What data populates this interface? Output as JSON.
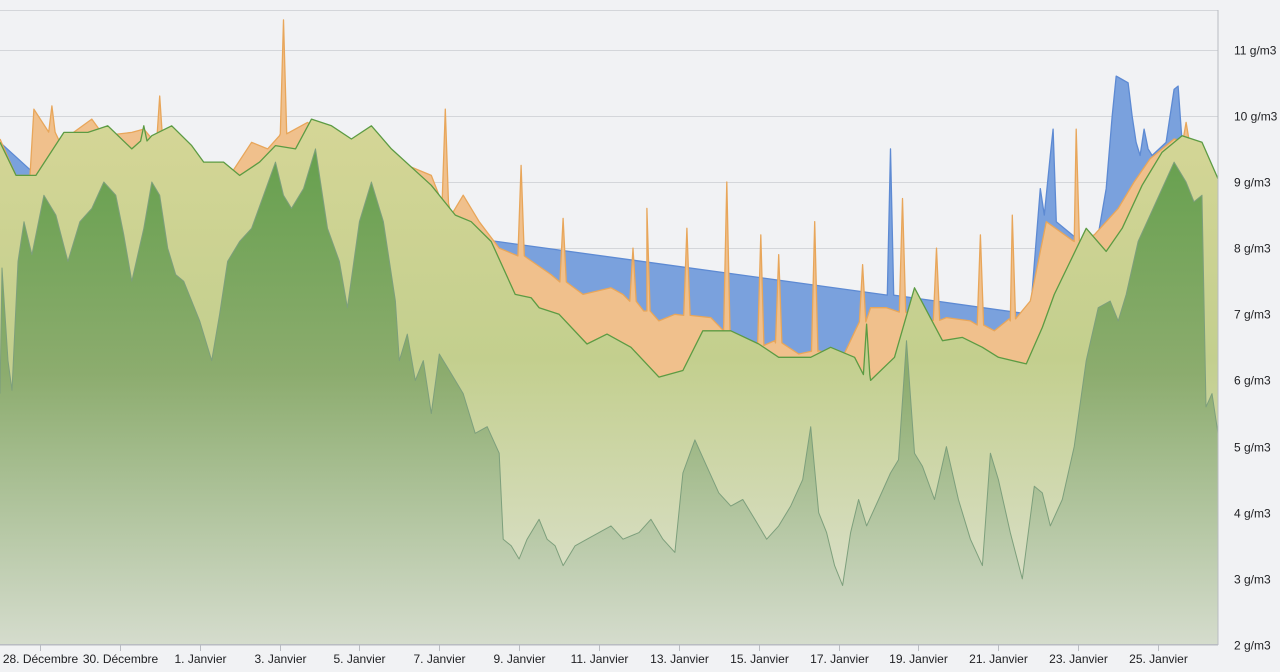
{
  "chart_data": {
    "type": "area",
    "title": "",
    "xlabel": "",
    "ylabel": "",
    "y_unit": "g/m3",
    "ylim": [
      2,
      11.6
    ],
    "y_ticks": [
      2,
      3,
      4,
      5,
      6,
      7,
      8,
      9,
      10,
      11
    ],
    "y_tick_labels": [
      "2 g/m3",
      "3 g/m3",
      "4 g/m3",
      "5 g/m3",
      "6 g/m3",
      "7 g/m3",
      "8 g/m3",
      "9 g/m3",
      "10 g/m3",
      "11 g/m3"
    ],
    "y_axis_side": "right",
    "x_range_days": [
      -1,
      29.5
    ],
    "x_ticks": [
      {
        "day": 0,
        "label": "28. Décembre"
      },
      {
        "day": 2,
        "label": "30. Décembre"
      },
      {
        "day": 4,
        "label": "1. Janvier"
      },
      {
        "day": 6,
        "label": "3. Janvier"
      },
      {
        "day": 8,
        "label": "5. Janvier"
      },
      {
        "day": 10,
        "label": "7. Janvier"
      },
      {
        "day": 12,
        "label": "9. Janvier"
      },
      {
        "day": 14,
        "label": "11. Janvier"
      },
      {
        "day": 16,
        "label": "13. Janvier"
      },
      {
        "day": 18,
        "label": "15. Janvier"
      },
      {
        "day": 20,
        "label": "17. Janvier"
      },
      {
        "day": 22,
        "label": "19. Janvier"
      },
      {
        "day": 24,
        "label": "21. Janvier"
      },
      {
        "day": 26,
        "label": "23. Janvier"
      },
      {
        "day": 28,
        "label": "25. Janvier"
      }
    ],
    "grid": true,
    "legend": "none",
    "series": [
      {
        "color": "#6f98d8",
        "points": [
          [
            -1,
            9.6
          ],
          [
            0,
            9.05
          ],
          [
            24.8,
            7.0
          ],
          [
            25.05,
            8.9
          ],
          [
            25.15,
            8.5
          ],
          [
            25.3,
            9.4
          ],
          [
            25.37,
            9.8
          ],
          [
            25.45,
            8.4
          ],
          [
            26.05,
            8.1
          ],
          [
            26.2,
            7.9
          ],
          [
            26.5,
            8.2
          ],
          [
            26.7,
            8.9
          ],
          [
            26.85,
            10.0
          ],
          [
            26.95,
            10.6
          ],
          [
            27.1,
            10.55
          ],
          [
            27.25,
            10.5
          ],
          [
            27.35,
            10.0
          ],
          [
            27.45,
            9.6
          ],
          [
            27.55,
            9.4
          ],
          [
            27.65,
            9.8
          ],
          [
            27.75,
            9.5
          ],
          [
            27.85,
            9.4
          ],
          [
            28.2,
            9.6
          ],
          [
            28.4,
            10.4
          ],
          [
            28.5,
            10.45
          ],
          [
            28.6,
            9.6
          ],
          [
            28.95,
            9.2
          ],
          [
            29.15,
            9.3
          ],
          [
            29.3,
            9.0
          ],
          [
            29.5,
            9.0
          ]
        ],
        "spikes": [
          [
            21.3,
            9.5
          ]
        ]
      },
      {
        "color": "#f0b473",
        "points": [
          [
            -1,
            9.65
          ],
          [
            -0.75,
            9.3
          ],
          [
            -0.6,
            9.1
          ],
          [
            -0.25,
            9.1
          ],
          [
            -0.15,
            10.1
          ],
          [
            0.5,
            9.6
          ],
          [
            1.3,
            9.95
          ],
          [
            1.6,
            9.7
          ],
          [
            2.3,
            9.75
          ],
          [
            2.6,
            9.8
          ],
          [
            3.3,
            9.4
          ],
          [
            3.65,
            9.25
          ],
          [
            4.3,
            9.2
          ],
          [
            4.65,
            9.0
          ],
          [
            5.3,
            9.6
          ],
          [
            5.7,
            9.5
          ],
          [
            6.0,
            9.7
          ],
          [
            6.7,
            9.9
          ],
          [
            7.3,
            9.65
          ],
          [
            8.3,
            9.6
          ],
          [
            9.0,
            9.3
          ],
          [
            9.8,
            9.1
          ],
          [
            10.3,
            8.5
          ],
          [
            10.6,
            8.8
          ],
          [
            11.0,
            8.4
          ],
          [
            11.5,
            8.0
          ],
          [
            12.2,
            7.85
          ],
          [
            12.8,
            7.6
          ],
          [
            13.6,
            7.3
          ],
          [
            14.3,
            7.4
          ],
          [
            14.6,
            7.3
          ],
          [
            15.2,
            7.05
          ],
          [
            15.5,
            6.9
          ],
          [
            15.9,
            7.0
          ],
          [
            16.8,
            6.95
          ],
          [
            17.3,
            6.7
          ],
          [
            17.9,
            6.5
          ],
          [
            18.4,
            6.6
          ],
          [
            19.0,
            6.4
          ],
          [
            19.5,
            6.45
          ],
          [
            20.1,
            6.35
          ],
          [
            20.8,
            7.1
          ],
          [
            21.2,
            7.1
          ],
          [
            21.8,
            7.0
          ],
          [
            22.1,
            6.85
          ],
          [
            22.7,
            6.95
          ],
          [
            23.3,
            6.9
          ],
          [
            23.9,
            6.75
          ],
          [
            24.3,
            6.9
          ],
          [
            24.8,
            7.2
          ],
          [
            25.2,
            8.4
          ],
          [
            25.9,
            8.1
          ],
          [
            26.4,
            8.2
          ],
          [
            27.0,
            8.6
          ],
          [
            27.4,
            9.0
          ],
          [
            27.8,
            9.35
          ],
          [
            28.4,
            9.65
          ],
          [
            28.9,
            9.6
          ],
          [
            29.2,
            9.3
          ],
          [
            29.5,
            9.05
          ]
        ],
        "spikes": [
          [
            0.3,
            10.15
          ],
          [
            3.0,
            10.3
          ],
          [
            6.1,
            11.45
          ],
          [
            10.15,
            10.1
          ],
          [
            12.05,
            9.25
          ],
          [
            13.1,
            8.45
          ],
          [
            14.85,
            8.0
          ],
          [
            15.2,
            8.6
          ],
          [
            16.2,
            8.3
          ],
          [
            17.2,
            9.0
          ],
          [
            18.05,
            8.2
          ],
          [
            18.5,
            7.9
          ],
          [
            19.4,
            8.4
          ],
          [
            20.6,
            7.75
          ],
          [
            21.6,
            8.75
          ],
          [
            22.45,
            8.0
          ],
          [
            23.55,
            8.2
          ],
          [
            24.35,
            8.5
          ],
          [
            25.95,
            9.8
          ],
          [
            28.7,
            9.9
          ]
        ]
      },
      {
        "color": "#6ea94f",
        "points": [
          [
            -1,
            9.6
          ],
          [
            -0.6,
            9.1
          ],
          [
            -0.1,
            9.1
          ],
          [
            0.6,
            9.75
          ],
          [
            1.2,
            9.75
          ],
          [
            1.7,
            9.85
          ],
          [
            2.3,
            9.5
          ],
          [
            2.8,
            9.7
          ],
          [
            3.3,
            9.85
          ],
          [
            3.8,
            9.55
          ],
          [
            4.1,
            9.3
          ],
          [
            4.6,
            9.3
          ],
          [
            5.0,
            9.1
          ],
          [
            5.5,
            9.3
          ],
          [
            5.9,
            9.55
          ],
          [
            6.4,
            9.5
          ],
          [
            6.8,
            9.95
          ],
          [
            7.3,
            9.85
          ],
          [
            7.8,
            9.65
          ],
          [
            8.3,
            9.85
          ],
          [
            8.8,
            9.5
          ],
          [
            9.8,
            8.95
          ],
          [
            10.4,
            8.5
          ],
          [
            10.8,
            8.4
          ],
          [
            11.3,
            8.1
          ],
          [
            11.9,
            7.3
          ],
          [
            12.3,
            7.25
          ],
          [
            12.5,
            7.1
          ],
          [
            13.0,
            7.0
          ],
          [
            13.7,
            6.55
          ],
          [
            14.2,
            6.7
          ],
          [
            14.8,
            6.5
          ],
          [
            15.5,
            6.05
          ],
          [
            16.1,
            6.15
          ],
          [
            16.6,
            6.75
          ],
          [
            17.3,
            6.75
          ],
          [
            18.0,
            6.55
          ],
          [
            18.5,
            6.35
          ],
          [
            19.3,
            6.35
          ],
          [
            19.8,
            6.5
          ],
          [
            20.4,
            6.35
          ],
          [
            20.8,
            6.0
          ],
          [
            21.4,
            6.35
          ],
          [
            21.9,
            7.4
          ],
          [
            22.6,
            6.6
          ],
          [
            23.1,
            6.65
          ],
          [
            23.6,
            6.5
          ],
          [
            24.0,
            6.35
          ],
          [
            24.7,
            6.25
          ],
          [
            25.1,
            6.8
          ],
          [
            25.4,
            7.3
          ],
          [
            26.2,
            8.3
          ],
          [
            26.7,
            7.95
          ],
          [
            27.1,
            8.3
          ],
          [
            27.6,
            8.95
          ],
          [
            28.1,
            9.45
          ],
          [
            28.6,
            9.7
          ],
          [
            29.1,
            9.6
          ],
          [
            29.5,
            9.05
          ]
        ],
        "spikes": [
          [
            2.6,
            9.85
          ],
          [
            20.7,
            6.85
          ]
        ]
      },
      {
        "color": "#7d9f7c",
        "points": [
          [
            -1,
            5.8
          ],
          [
            -0.95,
            7.7
          ],
          [
            -0.8,
            6.3
          ],
          [
            -0.7,
            5.85
          ],
          [
            -0.55,
            7.8
          ],
          [
            -0.4,
            8.4
          ],
          [
            -0.2,
            7.9
          ],
          [
            0.1,
            8.8
          ],
          [
            0.4,
            8.5
          ],
          [
            0.7,
            7.8
          ],
          [
            1.0,
            8.4
          ],
          [
            1.3,
            8.6
          ],
          [
            1.6,
            9.0
          ],
          [
            1.9,
            8.8
          ],
          [
            2.1,
            8.2
          ],
          [
            2.3,
            7.5
          ],
          [
            2.6,
            8.3
          ],
          [
            2.8,
            9.0
          ],
          [
            3.0,
            8.8
          ],
          [
            3.2,
            8.0
          ],
          [
            3.4,
            7.6
          ],
          [
            3.6,
            7.5
          ],
          [
            3.8,
            7.2
          ],
          [
            4.0,
            6.9
          ],
          [
            4.3,
            6.3
          ],
          [
            4.5,
            7.0
          ],
          [
            4.7,
            7.8
          ],
          [
            5.0,
            8.1
          ],
          [
            5.3,
            8.3
          ],
          [
            5.6,
            8.8
          ],
          [
            5.9,
            9.3
          ],
          [
            6.1,
            8.8
          ],
          [
            6.3,
            8.6
          ],
          [
            6.6,
            8.9
          ],
          [
            6.9,
            9.5
          ],
          [
            7.2,
            8.3
          ],
          [
            7.5,
            7.8
          ],
          [
            7.7,
            7.1
          ],
          [
            8.0,
            8.4
          ],
          [
            8.3,
            9.0
          ],
          [
            8.6,
            8.4
          ],
          [
            8.9,
            7.2
          ],
          [
            9.0,
            6.3
          ],
          [
            9.2,
            6.7
          ],
          [
            9.4,
            6.0
          ],
          [
            9.6,
            6.3
          ],
          [
            9.8,
            5.5
          ],
          [
            10.0,
            6.4
          ],
          [
            10.3,
            6.1
          ],
          [
            10.6,
            5.8
          ],
          [
            10.9,
            5.2
          ],
          [
            11.2,
            5.3
          ],
          [
            11.5,
            4.9
          ],
          [
            11.6,
            3.6
          ],
          [
            11.8,
            3.5
          ],
          [
            12.0,
            3.3
          ],
          [
            12.2,
            3.6
          ],
          [
            12.5,
            3.9
          ],
          [
            12.7,
            3.6
          ],
          [
            12.9,
            3.5
          ],
          [
            13.1,
            3.2
          ],
          [
            13.4,
            3.5
          ],
          [
            13.7,
            3.6
          ],
          [
            14.0,
            3.7
          ],
          [
            14.3,
            3.8
          ],
          [
            14.6,
            3.6
          ],
          [
            15.0,
            3.7
          ],
          [
            15.3,
            3.9
          ],
          [
            15.6,
            3.6
          ],
          [
            15.9,
            3.4
          ],
          [
            16.1,
            4.6
          ],
          [
            16.4,
            5.1
          ],
          [
            16.7,
            4.7
          ],
          [
            17.0,
            4.3
          ],
          [
            17.3,
            4.1
          ],
          [
            17.6,
            4.2
          ],
          [
            17.9,
            3.9
          ],
          [
            18.2,
            3.6
          ],
          [
            18.5,
            3.8
          ],
          [
            18.8,
            4.1
          ],
          [
            19.1,
            4.5
          ],
          [
            19.3,
            5.3
          ],
          [
            19.5,
            4.0
          ],
          [
            19.7,
            3.7
          ],
          [
            19.9,
            3.2
          ],
          [
            20.1,
            2.9
          ],
          [
            20.3,
            3.7
          ],
          [
            20.5,
            4.2
          ],
          [
            20.7,
            3.8
          ],
          [
            21.0,
            4.2
          ],
          [
            21.3,
            4.6
          ],
          [
            21.5,
            4.8
          ],
          [
            21.7,
            6.6
          ],
          [
            21.9,
            4.9
          ],
          [
            22.1,
            4.7
          ],
          [
            22.4,
            4.2
          ],
          [
            22.7,
            5.0
          ],
          [
            23.0,
            4.2
          ],
          [
            23.3,
            3.6
          ],
          [
            23.6,
            3.2
          ],
          [
            23.8,
            4.9
          ],
          [
            24.0,
            4.5
          ],
          [
            24.3,
            3.7
          ],
          [
            24.6,
            3.0
          ],
          [
            24.9,
            4.4
          ],
          [
            25.1,
            4.3
          ],
          [
            25.3,
            3.8
          ],
          [
            25.6,
            4.2
          ],
          [
            25.9,
            5.0
          ],
          [
            26.2,
            6.3
          ],
          [
            26.5,
            7.1
          ],
          [
            26.8,
            7.2
          ],
          [
            27.0,
            6.9
          ],
          [
            27.2,
            7.3
          ],
          [
            27.5,
            8.1
          ],
          [
            27.8,
            8.5
          ],
          [
            28.1,
            8.9
          ],
          [
            28.4,
            9.3
          ],
          [
            28.7,
            9.0
          ],
          [
            28.9,
            8.7
          ],
          [
            29.1,
            8.8
          ],
          [
            29.2,
            5.6
          ],
          [
            29.35,
            5.8
          ],
          [
            29.5,
            5.2
          ]
        ]
      }
    ]
  }
}
